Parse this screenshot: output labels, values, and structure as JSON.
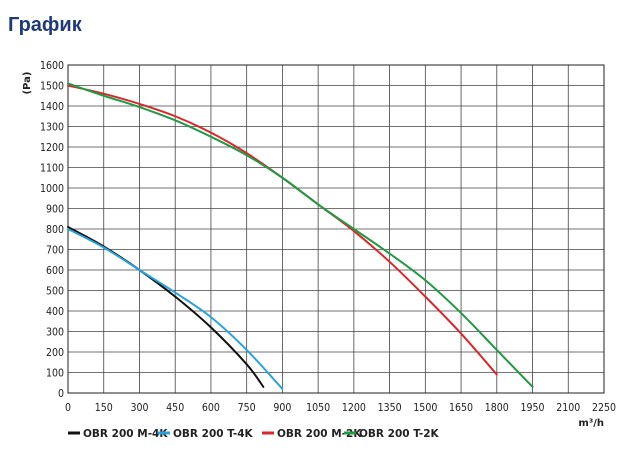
{
  "page": {
    "title": "График"
  },
  "chart_data": {
    "type": "line",
    "title": "",
    "xlabel": "m³/h",
    "ylabel": "(Pa)",
    "xlim": [
      0,
      2250
    ],
    "ylim": [
      0,
      1600
    ],
    "x_ticks": [
      0,
      150,
      300,
      450,
      600,
      750,
      900,
      1050,
      1200,
      1350,
      1500,
      1650,
      1800,
      1950,
      2100,
      2250
    ],
    "y_ticks": [
      0,
      100,
      200,
      300,
      400,
      500,
      600,
      700,
      800,
      900,
      1000,
      1100,
      1200,
      1300,
      1400,
      1500,
      1600
    ],
    "grid": true,
    "legend_position": "bottom",
    "series": [
      {
        "name": "OBR 200 M-4K",
        "color": "#111111",
        "x": [
          0,
          150,
          300,
          450,
          600,
          750,
          820
        ],
        "y": [
          810,
          715,
          600,
          470,
          320,
          140,
          30
        ]
      },
      {
        "name": "OBR 200 T-4K",
        "color": "#2aa3dc",
        "x": [
          0,
          150,
          300,
          450,
          600,
          750,
          900
        ],
        "y": [
          800,
          710,
          600,
          490,
          370,
          210,
          20
        ]
      },
      {
        "name": "OBR 200 M-2K",
        "color": "#d7282b",
        "x": [
          0,
          150,
          300,
          450,
          600,
          750,
          900,
          1050,
          1200,
          1350,
          1500,
          1650,
          1800
        ],
        "y": [
          1500,
          1460,
          1410,
          1350,
          1270,
          1170,
          1050,
          920,
          790,
          640,
          470,
          290,
          90
        ]
      },
      {
        "name": "OBR 200 T-2K",
        "color": "#1f9a45",
        "x": [
          0,
          150,
          300,
          450,
          600,
          750,
          900,
          1050,
          1200,
          1350,
          1500,
          1650,
          1800,
          1950
        ],
        "y": [
          1510,
          1450,
          1395,
          1330,
          1250,
          1160,
          1050,
          920,
          800,
          680,
          550,
          390,
          210,
          30
        ]
      }
    ]
  }
}
